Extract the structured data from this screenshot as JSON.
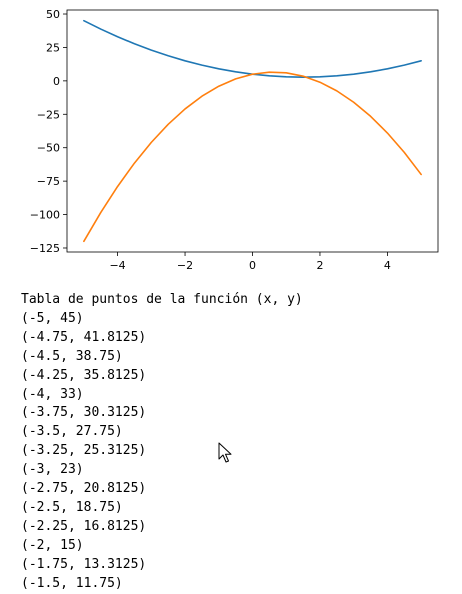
{
  "chart_data": {
    "type": "line",
    "title": "",
    "xlabel": "",
    "ylabel": "",
    "xlim": [
      -5.5,
      5.5
    ],
    "ylim": [
      -128,
      53
    ],
    "grid": false,
    "x_ticks": [
      -4,
      -2,
      0,
      2,
      4
    ],
    "y_ticks": [
      50,
      25,
      0,
      -25,
      -50,
      -75,
      -100,
      -125
    ],
    "x_tick_labels": [
      "−4",
      "−2",
      "0",
      "2",
      "4"
    ],
    "y_tick_labels": [
      "50",
      "25",
      "0",
      "−25",
      "−50",
      "−75",
      "−100",
      "−125"
    ],
    "series": [
      {
        "color": "#1f77b4",
        "x": [
          -5,
          -4.5,
          -4,
          -3.5,
          -3,
          -2.5,
          -2,
          -1.5,
          -1,
          -0.5,
          0,
          0.5,
          1,
          1.5,
          2,
          2.5,
          3,
          3.5,
          4,
          4.5,
          5
        ],
        "y": [
          45,
          38.75,
          33,
          27.75,
          23,
          18.75,
          15,
          11.75,
          9,
          6.75,
          5,
          3.75,
          3,
          2.75,
          3,
          3.75,
          5,
          6.75,
          9,
          11.75,
          15
        ]
      },
      {
        "color": "#ff7f0e",
        "x": [
          -5,
          -4.5,
          -4,
          -3.5,
          -3,
          -2.5,
          -2,
          -1.5,
          -1,
          -0.5,
          0,
          0.5,
          1,
          1.5,
          2,
          2.5,
          3,
          3.5,
          4,
          4.5,
          5
        ],
        "y": [
          -120,
          -98.5,
          -79,
          -61.5,
          -46,
          -32.5,
          -21,
          -11.5,
          -4,
          1.5,
          5,
          6.5,
          6,
          3.5,
          -1,
          -7.5,
          -16,
          -26.5,
          -39,
          -53.5,
          -70
        ]
      }
    ]
  },
  "console": {
    "lines": [
      "Tabla de puntos de la función (x, y)",
      "(-5, 45)",
      "(-4.75, 41.8125)",
      "(-4.5, 38.75)",
      "(-4.25, 35.8125)",
      "(-4, 33)",
      "(-3.75, 30.3125)",
      "(-3.5, 27.75)",
      "(-3.25, 25.3125)",
      "(-3, 23)",
      "(-2.75, 20.8125)",
      "(-2.5, 18.75)",
      "(-2.25, 16.8125)",
      "(-2, 15)",
      "(-1.75, 13.3125)",
      "(-1.5, 11.75)"
    ]
  },
  "cursor": {
    "icon": "arrow-cursor-icon"
  }
}
